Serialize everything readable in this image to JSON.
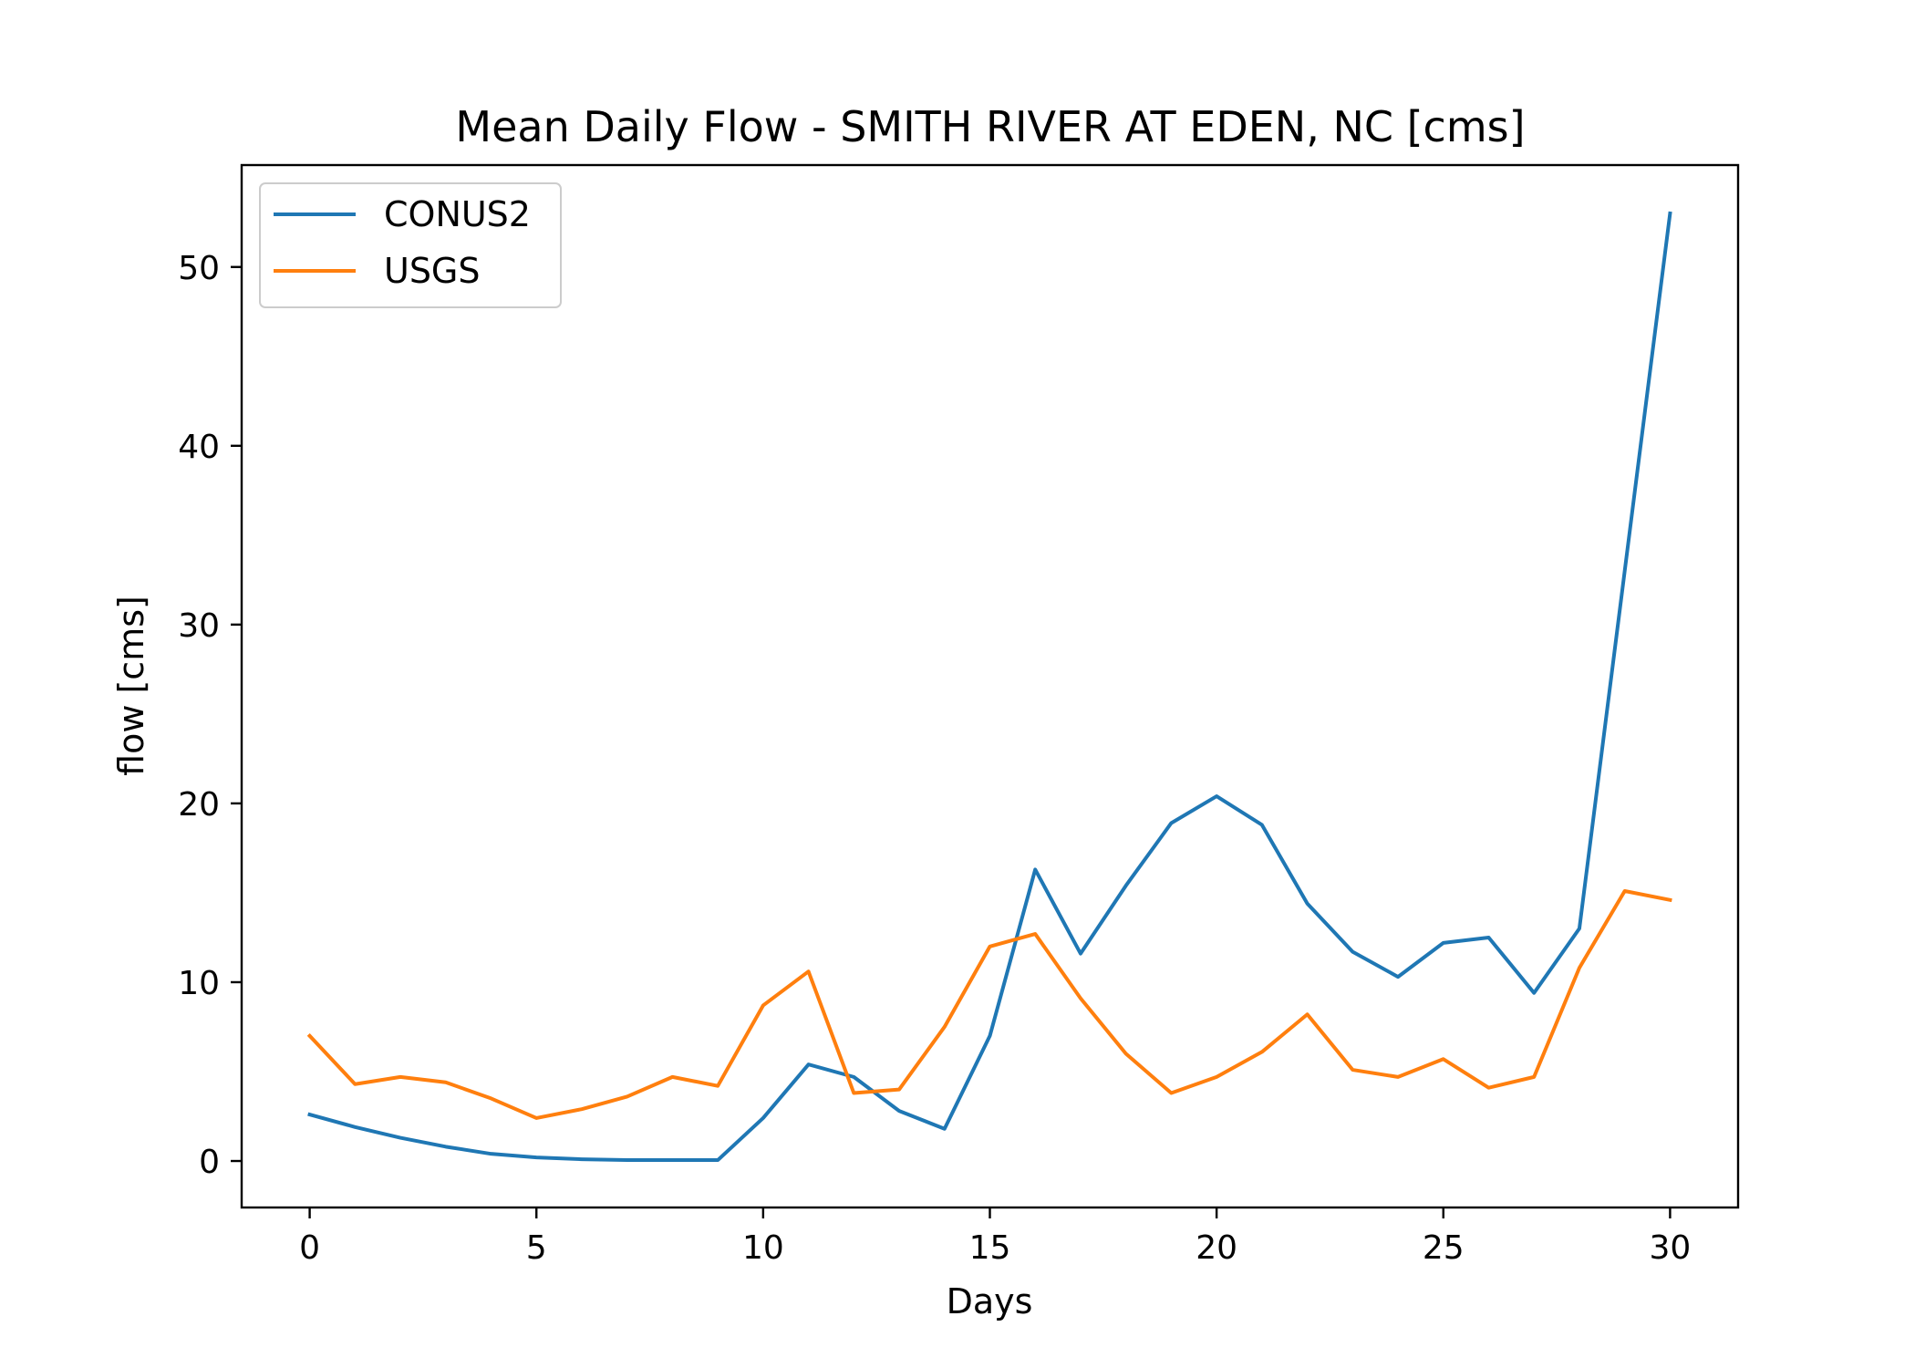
{
  "chart_data": {
    "type": "line",
    "title": "Mean Daily Flow - SMITH RIVER AT EDEN, NC [cms]",
    "xlabel": "Days",
    "ylabel": "flow [cms]",
    "xlim": [
      -1.5,
      31.5
    ],
    "ylim": [
      -2.6,
      55.7
    ],
    "xticks": [
      0,
      5,
      10,
      15,
      20,
      25,
      30
    ],
    "yticks": [
      0,
      10,
      20,
      30,
      40,
      50
    ],
    "grid": false,
    "legend_position": "top-left",
    "x": [
      0,
      1,
      2,
      3,
      4,
      5,
      6,
      7,
      8,
      9,
      10,
      11,
      12,
      13,
      14,
      15,
      16,
      17,
      18,
      19,
      20,
      21,
      22,
      23,
      24,
      25,
      26,
      27,
      28,
      29,
      30
    ],
    "series": [
      {
        "name": "CONUS2",
        "color": "#1f77b4",
        "values": [
          2.6,
          1.9,
          1.3,
          0.8,
          0.4,
          0.2,
          0.1,
          0.05,
          0.05,
          0.05,
          2.4,
          5.4,
          4.7,
          2.8,
          1.8,
          7.0,
          16.3,
          11.6,
          15.4,
          18.9,
          20.4,
          18.8,
          14.4,
          11.7,
          10.3,
          12.2,
          12.5,
          9.4,
          13.0,
          33.0,
          53.0
        ]
      },
      {
        "name": "USGS",
        "color": "#ff7f0e",
        "values": [
          7.0,
          4.3,
          4.7,
          4.4,
          3.5,
          2.4,
          2.9,
          3.6,
          4.7,
          4.2,
          8.7,
          10.6,
          3.8,
          4.0,
          7.5,
          12.0,
          12.7,
          9.1,
          6.0,
          3.8,
          4.7,
          6.1,
          8.2,
          5.1,
          4.7,
          5.7,
          4.1,
          4.7,
          10.8,
          15.1,
          14.6
        ]
      }
    ]
  }
}
